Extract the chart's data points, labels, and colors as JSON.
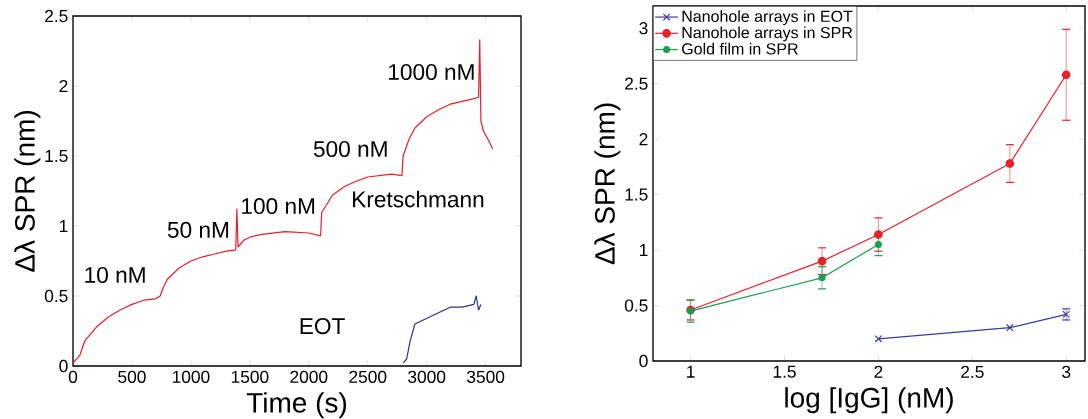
{
  "chart_data": [
    {
      "type": "line",
      "xlabel": "Time (s)",
      "ylabel": "Δλ SPR (nm)",
      "xlim": [
        0,
        3800
      ],
      "ylim": [
        0,
        2.5
      ],
      "xticks": [
        0,
        500,
        1000,
        1500,
        2000,
        2500,
        3000,
        3500
      ],
      "yticks": [
        0,
        0.5,
        1,
        1.5,
        2,
        2.5
      ],
      "marker": "none",
      "grid": false,
      "legend": false,
      "series": [
        {
          "color": "#e8202a",
          "x": [
            0,
            60,
            100,
            200,
            300,
            400,
            500,
            600,
            700,
            740,
            760,
            800,
            900,
            1000,
            1100,
            1200,
            1300,
            1380,
            1390,
            1400,
            1450,
            1500,
            1600,
            1800,
            2000,
            2100,
            2110,
            2150,
            2200,
            2300,
            2400,
            2500,
            2600,
            2700,
            2790,
            2800,
            2850,
            2900,
            3000,
            3100,
            3200,
            3300,
            3400,
            3440,
            3450,
            3460,
            3480,
            3520,
            3560
          ],
          "values": [
            0.02,
            0.08,
            0.18,
            0.28,
            0.35,
            0.4,
            0.44,
            0.47,
            0.48,
            0.5,
            0.55,
            0.62,
            0.7,
            0.75,
            0.78,
            0.8,
            0.82,
            0.83,
            1.12,
            0.85,
            0.9,
            0.92,
            0.94,
            0.96,
            0.95,
            0.93,
            1.1,
            1.15,
            1.22,
            1.28,
            1.32,
            1.35,
            1.36,
            1.37,
            1.36,
            1.5,
            1.62,
            1.7,
            1.78,
            1.83,
            1.87,
            1.89,
            1.91,
            1.92,
            2.33,
            1.75,
            1.68,
            1.62,
            1.55
          ]
        },
        {
          "color": "#2e2e96",
          "x": [
            2800,
            2830,
            2860,
            2900,
            3000,
            3100,
            3200,
            3300,
            3400,
            3420,
            3440,
            3460
          ],
          "values": [
            0.02,
            0.05,
            0.18,
            0.3,
            0.34,
            0.38,
            0.42,
            0.42,
            0.44,
            0.5,
            0.4,
            0.44
          ]
        }
      ],
      "annotations": [
        "10 nM",
        "50 nM",
        "100 nM",
        "500 nM",
        "1000 nM",
        "Kretschmann",
        "EOT"
      ]
    },
    {
      "type": "line",
      "xlabel": "log [IgG] (nM)",
      "ylabel": "Δλ SPR (nm)",
      "xlim": [
        0.8,
        3.1
      ],
      "ylim": [
        0,
        3.2
      ],
      "xticks": [
        1,
        1.5,
        2,
        2.5,
        3
      ],
      "yticks": [
        0,
        0.5,
        1,
        1.5,
        2,
        2.5,
        3
      ],
      "grid": false,
      "legend": "top left",
      "series": [
        {
          "name": "Nanohole arrays in EOT",
          "color": "#3a3aa0",
          "marker": "cross",
          "x": [
            2,
            2.7,
            3
          ],
          "values": [
            0.2,
            0.3,
            0.42
          ],
          "errors": [
            null,
            null,
            0.05
          ]
        },
        {
          "name": "Nanohole arrays in SPR",
          "color": "#e8202a",
          "marker": "circle",
          "x": [
            1,
            1.7,
            2,
            2.7,
            3
          ],
          "values": [
            0.46,
            0.9,
            1.14,
            1.78,
            2.58
          ],
          "errors": [
            0.09,
            0.12,
            0.15,
            0.17,
            0.41
          ]
        },
        {
          "name": "Gold film in SPR",
          "color": "#1aa050",
          "marker": "circle",
          "x": [
            1,
            1.7,
            2
          ],
          "values": [
            0.45,
            0.75,
            1.05
          ],
          "errors": [
            0.1,
            0.1,
            0.1
          ]
        }
      ]
    }
  ]
}
